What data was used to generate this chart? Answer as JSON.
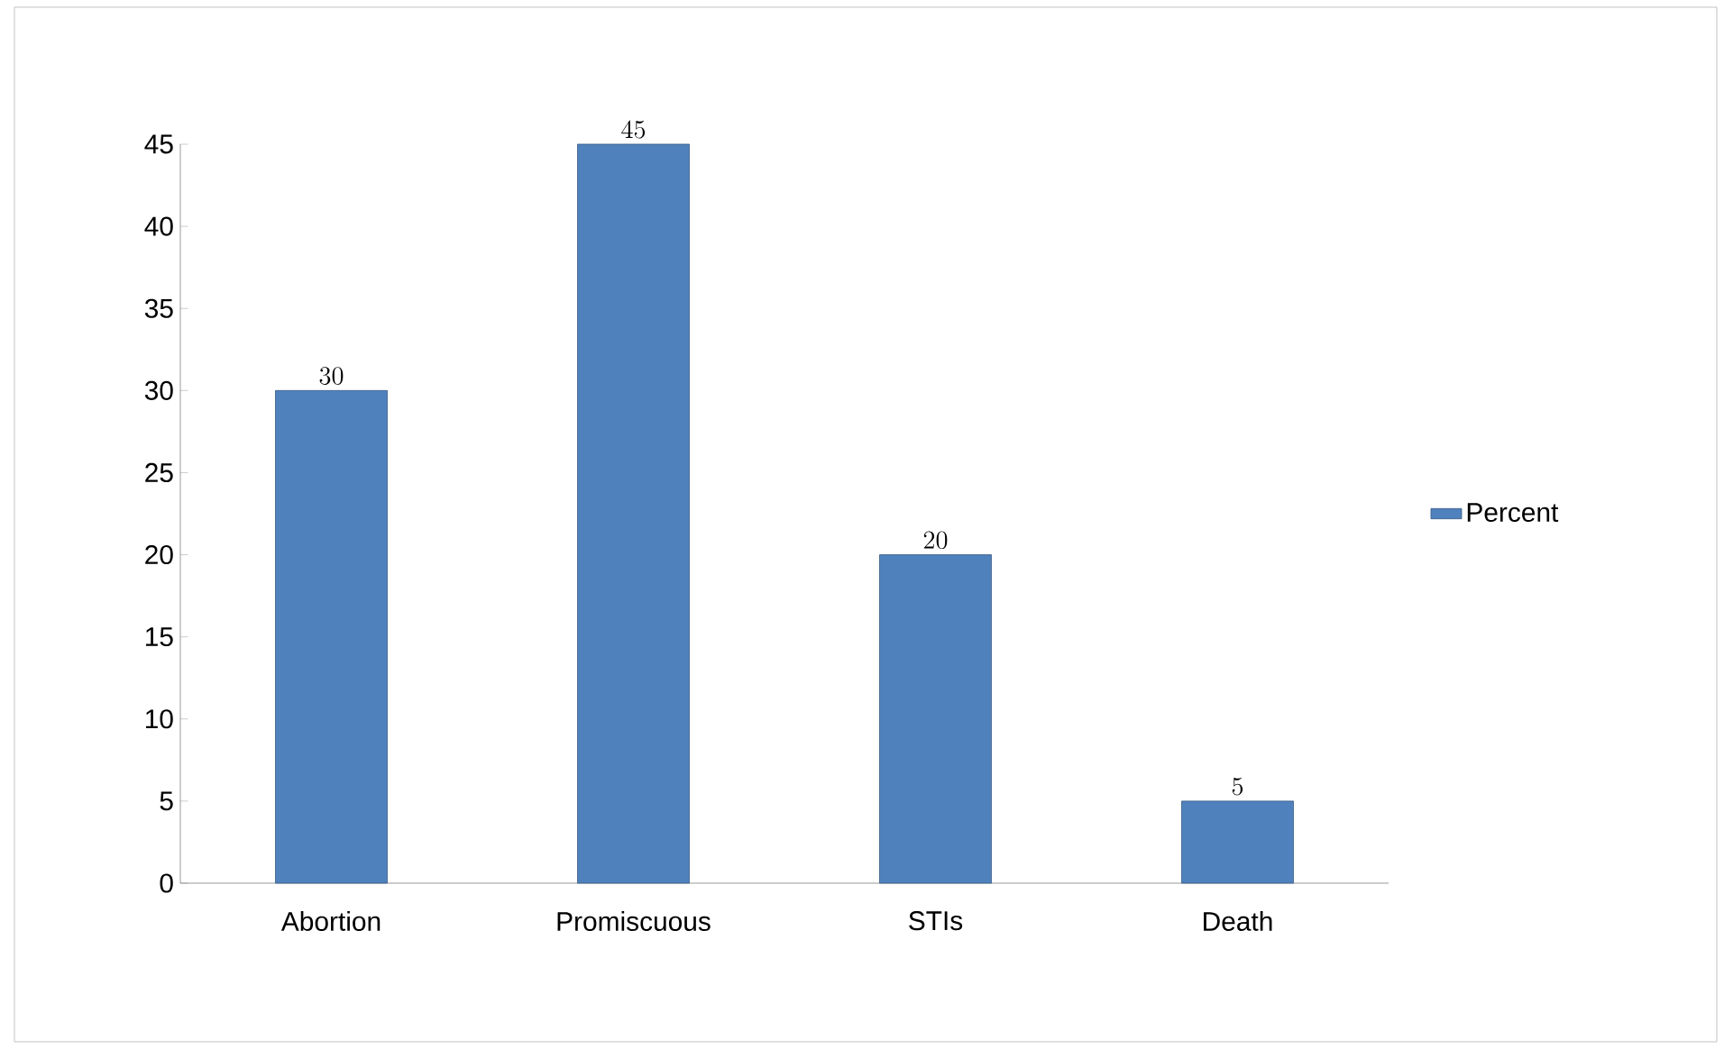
{
  "chart_data": {
    "type": "bar",
    "categories": [
      "Abortion",
      "Promiscuous",
      "STIs",
      "Death"
    ],
    "series": [
      {
        "name": "Percent",
        "color": "#4f81bd",
        "values": [
          30,
          45,
          20,
          5
        ]
      }
    ],
    "ylim": [
      0,
      45
    ],
    "yticks": [
      0,
      5,
      10,
      15,
      20,
      25,
      30,
      35,
      40,
      45
    ],
    "data_labels": true,
    "legend": "right",
    "grid": false
  }
}
